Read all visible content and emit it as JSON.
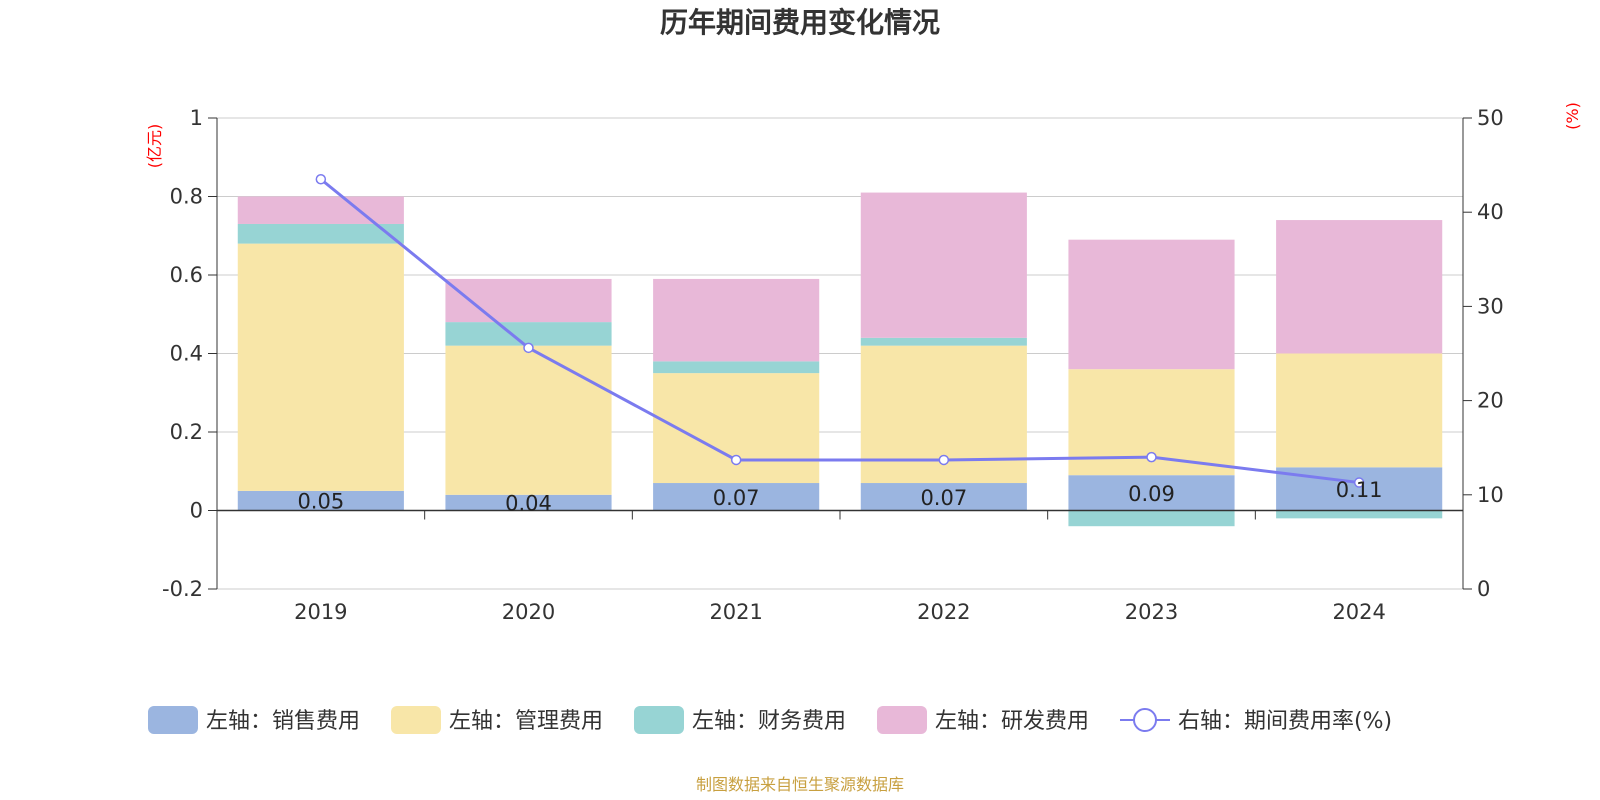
{
  "chart_data": {
    "type": "bar",
    "title": "历年期间费用变化情况",
    "left_axis_unit": "(亿元)",
    "right_axis_unit": "(%)",
    "categories": [
      "2019",
      "2020",
      "2021",
      "2022",
      "2023",
      "2024"
    ],
    "left_ylim": [
      -0.2,
      1
    ],
    "left_yticks": [
      "-0.2",
      "0",
      "0.2",
      "0.4",
      "0.6",
      "0.8",
      "1"
    ],
    "right_ylim": [
      0,
      50
    ],
    "right_yticks": [
      "0",
      "10",
      "20",
      "30",
      "40",
      "50"
    ],
    "grid": true,
    "legend_position": "bottom",
    "series": [
      {
        "name": "左轴：销售费用",
        "type": "bar",
        "stack": true,
        "color": "#9bb5e0",
        "values": [
          0.05,
          0.04,
          0.07,
          0.07,
          0.09,
          0.11
        ],
        "labels": [
          "0.05",
          "0.04",
          "0.07",
          "0.07",
          "0.09",
          "0.11"
        ]
      },
      {
        "name": "左轴：管理费用",
        "type": "bar",
        "stack": true,
        "color": "#f8e6a8",
        "values": [
          0.63,
          0.38,
          0.28,
          0.35,
          0.27,
          0.29
        ]
      },
      {
        "name": "左轴：财务费用",
        "type": "bar",
        "stack": true,
        "color": "#97d4d4",
        "values": [
          0.05,
          0.06,
          0.03,
          0.02,
          -0.04,
          -0.02
        ]
      },
      {
        "name": "左轴：研发费用",
        "type": "bar",
        "stack": true,
        "color": "#e8b8d8",
        "values": [
          0.07,
          0.11,
          0.21,
          0.37,
          0.33,
          0.34
        ]
      },
      {
        "name": "右轴：期间费用率(%)",
        "type": "line",
        "axis": "right",
        "color": "#7b7bef",
        "values": [
          43.5,
          25.6,
          13.7,
          13.7,
          14.0,
          11.3
        ]
      }
    ]
  },
  "source_note": "制图数据来自恒生聚源数据库"
}
